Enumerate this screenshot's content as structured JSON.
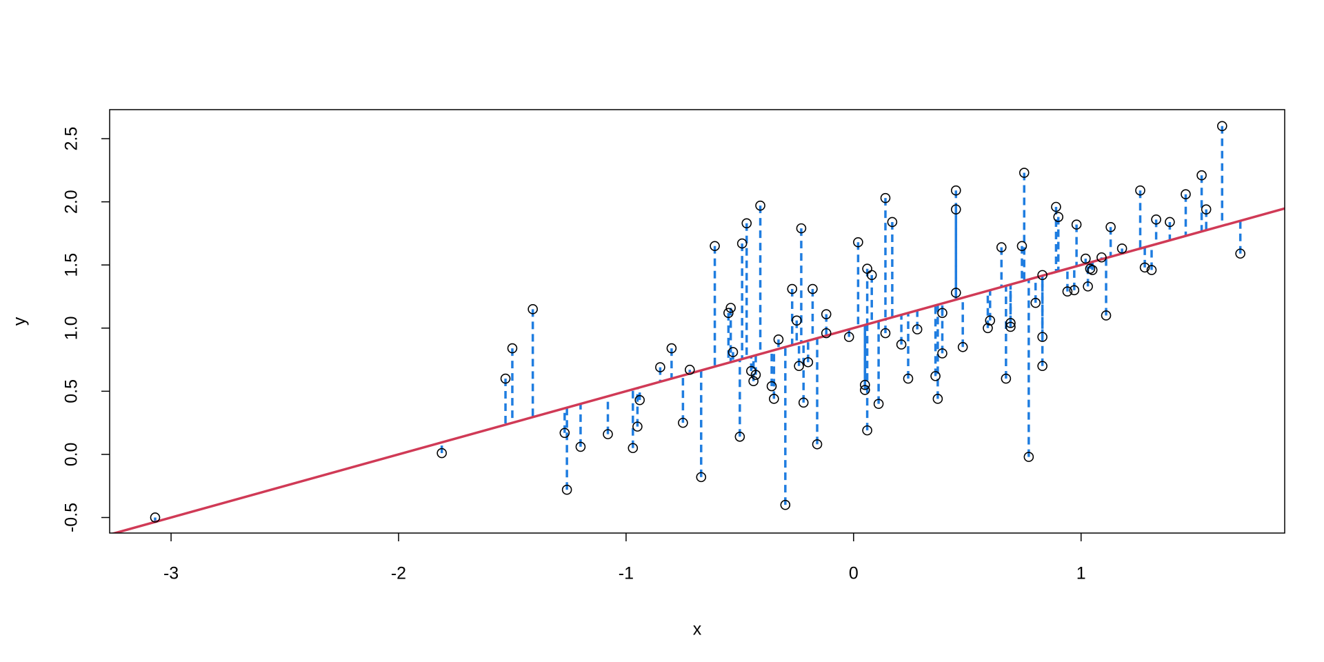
{
  "chart_data": {
    "type": "scatter",
    "x_label": "x",
    "y_label": "y",
    "x": [
      -3.07,
      -1.81,
      -1.53,
      -1.5,
      -1.41,
      -1.27,
      -1.26,
      -1.2,
      -1.08,
      -0.97,
      -0.95,
      -0.94,
      -0.85,
      -0.8,
      -0.75,
      -0.72,
      -0.67,
      -0.61,
      -0.55,
      -0.54,
      -0.53,
      -0.5,
      -0.49,
      -0.47,
      -0.45,
      -0.44,
      -0.43,
      -0.41,
      -0.36,
      -0.35,
      -0.33,
      -0.3,
      -0.27,
      -0.25,
      -0.24,
      -0.23,
      -0.22,
      -0.2,
      -0.18,
      -0.16,
      -0.12,
      -0.12,
      -0.02,
      0.02,
      0.05,
      0.05,
      0.06,
      0.06,
      0.08,
      0.11,
      0.14,
      0.14,
      0.17,
      0.21,
      0.24,
      0.28,
      0.36,
      0.37,
      0.39,
      0.39,
      0.45,
      0.45,
      0.45,
      0.48,
      0.59,
      0.6,
      0.65,
      0.67,
      0.69,
      0.69,
      0.74,
      0.75,
      0.77,
      0.8,
      0.83,
      0.83,
      0.83,
      0.89,
      0.9,
      0.94,
      0.97,
      0.98,
      1.02,
      1.03,
      1.04,
      1.05,
      1.09,
      1.11,
      1.13,
      1.18,
      1.26,
      1.28,
      1.31,
      1.33,
      1.39,
      1.46,
      1.53,
      1.55,
      1.62,
      1.7
    ],
    "values": [
      -0.5,
      0.01,
      0.6,
      0.84,
      1.15,
      0.17,
      -0.28,
      0.06,
      0.16,
      0.05,
      0.22,
      0.43,
      0.69,
      0.84,
      0.25,
      0.67,
      -0.18,
      1.65,
      1.12,
      1.16,
      0.81,
      0.14,
      1.67,
      1.83,
      0.66,
      0.58,
      0.63,
      1.97,
      0.54,
      0.44,
      0.91,
      -0.4,
      1.31,
      1.06,
      0.7,
      1.79,
      0.41,
      0.73,
      1.31,
      0.08,
      1.11,
      0.96,
      0.93,
      1.68,
      0.55,
      0.51,
      1.47,
      0.19,
      1.42,
      0.4,
      0.96,
      2.03,
      1.84,
      0.87,
      0.6,
      0.99,
      0.62,
      0.44,
      1.12,
      0.8,
      1.28,
      2.09,
      1.94,
      0.85,
      1.0,
      1.06,
      1.64,
      0.6,
      1.04,
      1.01,
      1.65,
      2.23,
      -0.02,
      1.2,
      1.42,
      0.7,
      0.93,
      1.96,
      1.88,
      1.29,
      1.3,
      1.82,
      1.55,
      1.33,
      1.47,
      1.46,
      1.56,
      1.1,
      1.8,
      1.63,
      2.09,
      1.48,
      1.46,
      1.86,
      1.84,
      2.06,
      2.21,
      1.94,
      2.6,
      1.59
    ],
    "color": "#000000",
    "residual_color": "#1f7de0",
    "fit": {
      "intercept": 1,
      "slope": 0.5,
      "color": "#d03a56"
    },
    "xlim": [
      -3.27,
      1.895
    ],
    "ylim": [
      -0.623,
      2.73
    ],
    "xticks": [
      -3,
      -2,
      -1,
      0,
      1
    ],
    "yticks": [
      -0.5,
      {
        "value": 0,
        "label": "0.0"
      },
      0.5,
      {
        "value": 1,
        "label": "1.0"
      },
      1.5,
      {
        "value": 2,
        "label": "2.0"
      },
      2.5
    ]
  }
}
